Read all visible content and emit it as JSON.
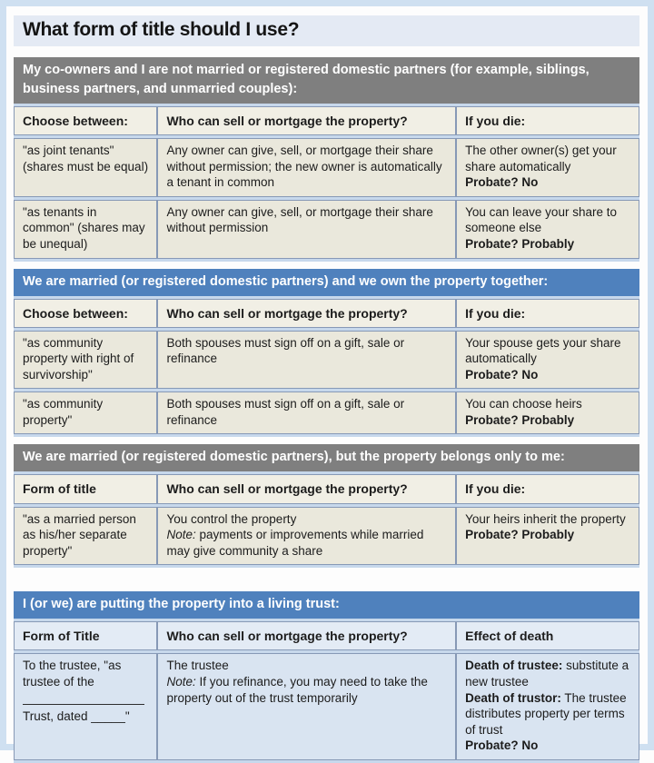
{
  "page": {
    "title": "What form of title should I use?"
  },
  "colors": {
    "gray_header_bg": "#7f7f7f",
    "blue_header_bg": "#4f81bd",
    "header_text": "#ffffff",
    "cell_beige": "#eae8dc",
    "cell_header_beige": "#f1efe5",
    "cell_blue": "#d9e4f1",
    "cell_header_blue": "#e3ebf5",
    "row_gap_blue": "#c7d8ec",
    "frame_blue": "#cfe0f1",
    "cell_border": "#8799b6"
  },
  "sections": [
    {
      "header": "My co-owners and I are not married or registered domestic partners (for example, siblings, business partners, and unmarried couples):",
      "columns": [
        "Choose between:",
        "Who can sell or mortgage the property?",
        "If you die:"
      ],
      "rows": [
        {
          "form": "\"as joint tenants\" (shares must be equal)",
          "who": "Any owner can give, sell, or mortgage their share without permission; the new owner is automatically a tenant in common",
          "die": "The other owner(s) get your share automatically",
          "probate": "Probate? No"
        },
        {
          "form": "\"as tenants in common\" (shares may be unequal)",
          "who": "Any owner can give, sell, or mortgage their share without permission",
          "die": "You can leave your share to someone else",
          "probate": "Probate? Probably"
        }
      ]
    },
    {
      "header": "We are married (or registered domestic partners) and we own the property together:",
      "columns": [
        "Choose between:",
        "Who can sell or mortgage the property?",
        "If you die:"
      ],
      "rows": [
        {
          "form": "\"as community property with right of survivorship\"",
          "who": "Both spouses must sign off on a gift, sale or refinance",
          "die": "Your spouse gets your share automatically",
          "probate": "Probate? No"
        },
        {
          "form": "\"as community property\"",
          "who": "Both spouses must sign off on a gift, sale or refinance",
          "die": "You can choose heirs",
          "probate": "Probate? Probably"
        }
      ]
    },
    {
      "header": "We are married (or registered domestic partners), but the property belongs only to me:",
      "columns": [
        "Form of title",
        "Who can sell or mortgage the property?",
        "If you die:"
      ],
      "rows": [
        {
          "form": "\"as a married person as his/her separate property\"",
          "who": "You control the property",
          "who_note_label": "Note:",
          "who_note": "payments or improvements while married may give community a share",
          "die": "Your heirs inherit the property",
          "probate": "Probate? Probably"
        }
      ]
    },
    {
      "header": "I (or we) are putting the property into a living trust:",
      "columns": [
        "Form of Title",
        "Who can sell or mortgage the property?",
        "Effect of death"
      ],
      "rows": [
        {
          "form_line1": "To the trustee, \"as trustee of the",
          "form_line2": "Trust, dated _____\"",
          "who": "The trustee",
          "who_note_label": "Note:",
          "who_note": "If you refinance, you may need to take the property out of the trust temporarily",
          "effect_bold1": "Death of trustee:",
          "effect_text1": "substitute a new trustee",
          "effect_bold2": "Death of trustor:",
          "effect_text2": "The trustee distributes property per terms of trust",
          "probate": "Probate? No"
        }
      ]
    }
  ]
}
